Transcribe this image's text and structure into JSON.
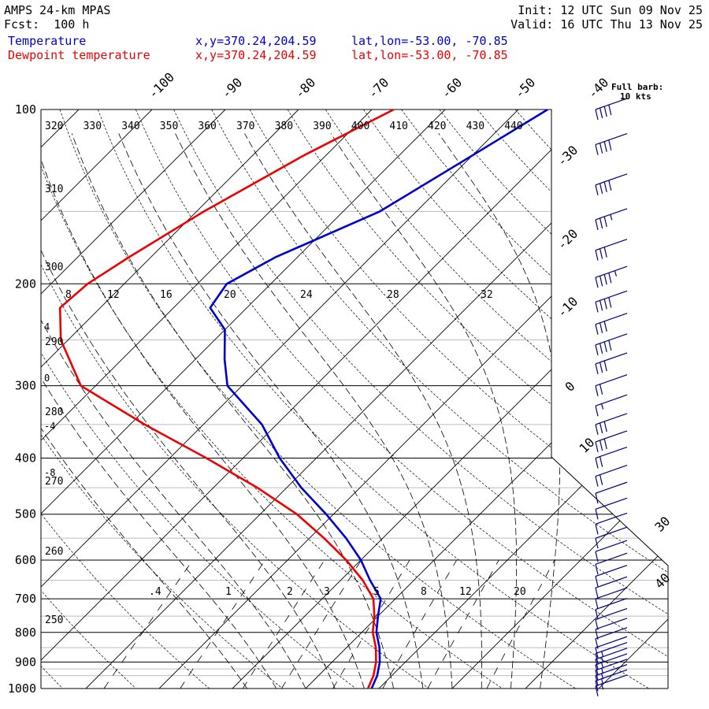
{
  "header": {
    "model": "AMPS 24-km MPAS",
    "forecast": "Fcst:  100 h",
    "init": "Init: 12 UTC Sun 09 Nov 25",
    "valid": "Valid: 16 UTC Thu 13 Nov 25",
    "series": [
      {
        "name": "Temperature",
        "xy": "x,y=370.24,204.59",
        "latlon": "lat,lon=-53.00, -70.85",
        "color": "#0000cc"
      },
      {
        "name": "Dewpoint temperature",
        "xy": "x,y=370.24,204.59",
        "latlon": "lat,lon=-53.00, -70.85",
        "color": "#ee0000"
      }
    ]
  },
  "wind_legend": {
    "line1": "Full barb:",
    "line2": "10 kts"
  },
  "chart_data": {
    "type": "line",
    "subtype": "skew-t log-p sounding",
    "y_axis": {
      "scale": "log",
      "unit": "hPa",
      "range": [
        1000,
        100
      ],
      "ticks": [
        100,
        200,
        300,
        400,
        500,
        600,
        700,
        800,
        900,
        1000
      ]
    },
    "isotherm_labels": [
      -100,
      -90,
      -80,
      -70,
      -60,
      -50,
      -40,
      -30,
      -20,
      -10,
      0,
      10,
      30,
      40
    ],
    "left_axis_temperature_labels": [
      "4",
      "0",
      "-4",
      "-8"
    ],
    "potential_temperature_labels_top": [
      320,
      330,
      340,
      350,
      360,
      370,
      380,
      390,
      400,
      410,
      420,
      430,
      440
    ],
    "potential_temperature_labels_left": [
      310,
      300,
      290,
      280,
      270,
      260,
      250
    ],
    "equivalent_potential_temperature_labels": [
      8,
      12,
      16,
      20,
      24,
      28,
      32
    ],
    "mixing_ratio_labels": [
      ".4",
      "1",
      "2",
      "3",
      "5",
      "8",
      "12",
      "20"
    ],
    "series": [
      {
        "name": "Temperature",
        "color": "#0000cc",
        "points": [
          [
            100,
            -46
          ],
          [
            120,
            -50
          ],
          [
            150,
            -55
          ],
          [
            180,
            -63
          ],
          [
            200,
            -66
          ],
          [
            220,
            -65
          ],
          [
            240,
            -60
          ],
          [
            270,
            -56
          ],
          [
            300,
            -52
          ],
          [
            350,
            -42
          ],
          [
            400,
            -35
          ],
          [
            450,
            -28
          ],
          [
            500,
            -21
          ],
          [
            550,
            -15
          ],
          [
            600,
            -10
          ],
          [
            650,
            -6
          ],
          [
            700,
            -2
          ],
          [
            750,
            0
          ],
          [
            800,
            2
          ],
          [
            850,
            4.5
          ],
          [
            900,
            6.5
          ],
          [
            950,
            8
          ],
          [
            1000,
            9
          ]
        ]
      },
      {
        "name": "Dewpoint temperature",
        "color": "#ee0000",
        "points": [
          [
            100,
            -67
          ],
          [
            120,
            -73
          ],
          [
            150,
            -79
          ],
          [
            180,
            -83
          ],
          [
            200,
            -85
          ],
          [
            220,
            -85.5
          ],
          [
            250,
            -81
          ],
          [
            300,
            -72
          ],
          [
            350,
            -58
          ],
          [
            400,
            -45
          ],
          [
            450,
            -34
          ],
          [
            500,
            -25
          ],
          [
            550,
            -18
          ],
          [
            600,
            -12
          ],
          [
            650,
            -7
          ],
          [
            700,
            -3
          ],
          [
            750,
            -0.5
          ],
          [
            800,
            1.5
          ],
          [
            850,
            4
          ],
          [
            900,
            6
          ],
          [
            950,
            7.5
          ],
          [
            1000,
            8.5
          ]
        ]
      }
    ],
    "wind_barbs": {
      "unit": "kts",
      "levels": [
        [
          100,
          40
        ],
        [
          115,
          40
        ],
        [
          135,
          40
        ],
        [
          155,
          35
        ],
        [
          175,
          30
        ],
        [
          195,
          45
        ],
        [
          215,
          40
        ],
        [
          235,
          30
        ],
        [
          255,
          40
        ],
        [
          275,
          30
        ],
        [
          300,
          20
        ],
        [
          325,
          15
        ],
        [
          350,
          30
        ],
        [
          375,
          30
        ],
        [
          400,
          20
        ],
        [
          430,
          20
        ],
        [
          460,
          10
        ],
        [
          490,
          10
        ],
        [
          520,
          10
        ],
        [
          550,
          10
        ],
        [
          580,
          10
        ],
        [
          610,
          10
        ],
        [
          640,
          10
        ],
        [
          670,
          10
        ],
        [
          700,
          10
        ],
        [
          730,
          10
        ],
        [
          760,
          10
        ],
        [
          790,
          10
        ],
        [
          820,
          10
        ],
        [
          850,
          10
        ],
        [
          870,
          15
        ],
        [
          890,
          15
        ],
        [
          910,
          15
        ],
        [
          930,
          15
        ],
        [
          950,
          15
        ],
        [
          970,
          15
        ],
        [
          990,
          15
        ]
      ]
    }
  }
}
